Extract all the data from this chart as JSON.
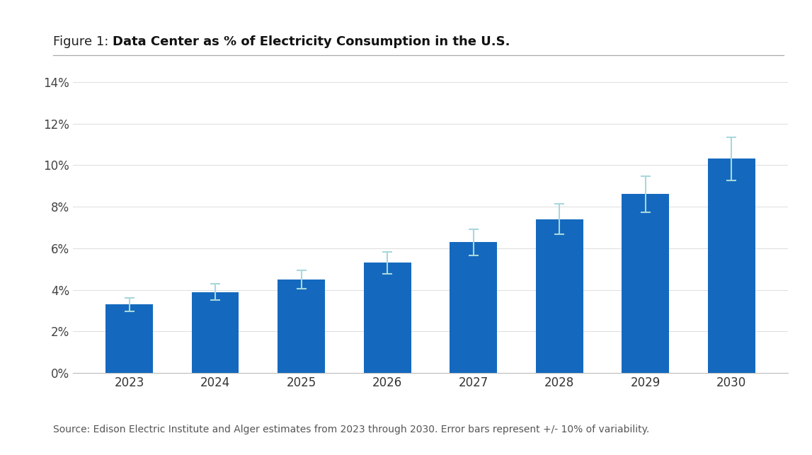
{
  "years": [
    "2023",
    "2024",
    "2025",
    "2026",
    "2027",
    "2028",
    "2029",
    "2030"
  ],
  "values": [
    3.3,
    3.9,
    4.5,
    5.3,
    6.3,
    7.4,
    8.6,
    10.3
  ],
  "error_pct": 0.1,
  "bar_color": "#1469BE",
  "error_bar_color": "#A8D8DC",
  "background_color": "#FFFFFF",
  "title_prefix": "Figure 1: ",
  "title_bold": "Data Center as % of Electricity Consumption in the U.S.",
  "ylim": [
    0,
    14
  ],
  "yticks": [
    0,
    2,
    4,
    6,
    8,
    10,
    12,
    14
  ],
  "source_text": "Source: Edison Electric Institute and Alger estimates from 2023 through 2030. Error bars represent +/- 10% of variability.",
  "title_fontsize": 13,
  "source_fontsize": 10,
  "tick_fontsize": 12,
  "bar_width": 0.55
}
